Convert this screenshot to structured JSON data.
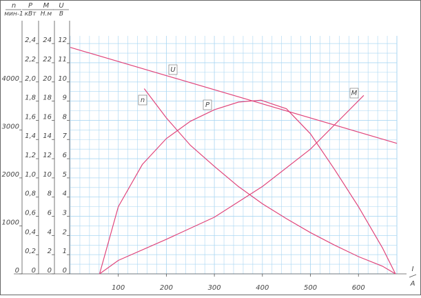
{
  "chart_data": {
    "type": "line",
    "x_label": "I",
    "x_unit": "A",
    "xlim": [
      0,
      680
    ],
    "xticks": [
      100,
      200,
      300,
      400,
      500,
      600
    ],
    "grid": true,
    "grid_color": "#a9d6f2",
    "color": "#e0457b",
    "y_axes": [
      {
        "name": "n",
        "unit": "мин-1",
        "lim": [
          0,
          4960
        ],
        "ticks": [
          0,
          1000,
          2000,
          3000,
          4000
        ]
      },
      {
        "name": "P",
        "unit": "кВт",
        "lim": [
          0,
          2.48
        ],
        "ticks": [
          0,
          {
            "value": 0.2,
            "label": "0,2"
          },
          {
            "value": 0.4,
            "label": "0,4"
          },
          {
            "value": 0.6,
            "label": "0,6"
          },
          {
            "value": 0.8,
            "label": "0,8"
          },
          {
            "value": 1.0,
            "label": "1,0"
          },
          {
            "value": 1.2,
            "label": "1,2"
          },
          {
            "value": 1.4,
            "label": "1,4"
          },
          {
            "value": 1.6,
            "label": "1,6"
          },
          {
            "value": 1.8,
            "label": "1,8"
          },
          {
            "value": 2.0,
            "label": "2,0"
          },
          {
            "value": 2.2,
            "label": "2,2"
          },
          {
            "value": 2.4,
            "label": "2,4"
          }
        ]
      },
      {
        "name": "M",
        "unit": "Н.м",
        "lim": [
          0,
          24.8
        ],
        "ticks": [
          0,
          2,
          4,
          6,
          8,
          10,
          12,
          14,
          16,
          18,
          20,
          22,
          24
        ]
      },
      {
        "name": "U",
        "unit": "В",
        "lim": [
          0,
          12.4
        ],
        "ticks": [
          0,
          1,
          2,
          3,
          4,
          5,
          6,
          7,
          8,
          9,
          10,
          11,
          12
        ]
      }
    ],
    "series": [
      {
        "name": "U",
        "axis": 3,
        "x": [
          0,
          680
        ],
        "values": [
          11.8,
          6.8
        ]
      },
      {
        "name": "n",
        "axis": 0,
        "x": [
          154,
          200,
          250,
          300,
          350,
          400,
          450,
          500,
          550,
          600,
          650,
          677
        ],
        "values": [
          3860,
          3250,
          2680,
          2240,
          1820,
          1460,
          1150,
          860,
          600,
          360,
          160,
          0
        ]
      },
      {
        "name": "P",
        "axis": 1,
        "x": [
          61,
          100,
          150,
          200,
          250,
          300,
          350,
          397,
          450,
          500,
          550,
          600,
          650,
          677
        ],
        "values": [
          0,
          0.7,
          1.14,
          1.41,
          1.59,
          1.71,
          1.79,
          1.81,
          1.72,
          1.46,
          1.09,
          0.7,
          0.27,
          0
        ]
      },
      {
        "name": "M",
        "axis": 2,
        "x": [
          61,
          100,
          200,
          300,
          400,
          500,
          611
        ],
        "values": [
          0,
          1.4,
          3.6,
          5.9,
          9.1,
          13.0,
          18.6
        ]
      }
    ]
  }
}
